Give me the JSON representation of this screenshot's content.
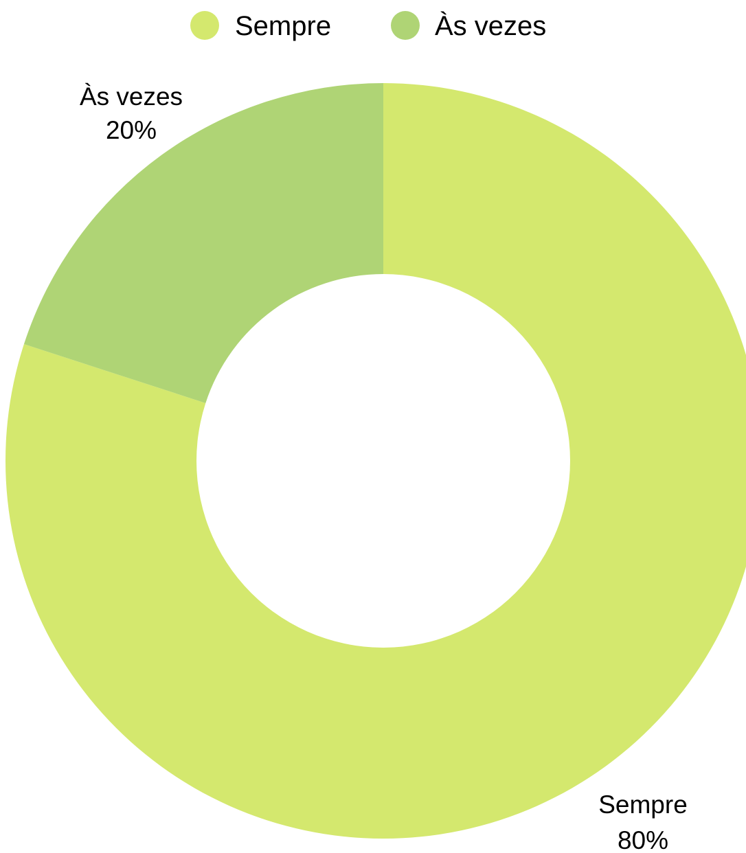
{
  "chart_data": {
    "type": "pie",
    "variant": "donut",
    "title": "",
    "legend_position": "top",
    "series": [
      {
        "name": "Sempre",
        "value": 80,
        "percent_label": "80%",
        "color": "#d4e86e"
      },
      {
        "name": "Às vezes",
        "value": 20,
        "percent_label": "20%",
        "color": "#afd475"
      }
    ]
  }
}
